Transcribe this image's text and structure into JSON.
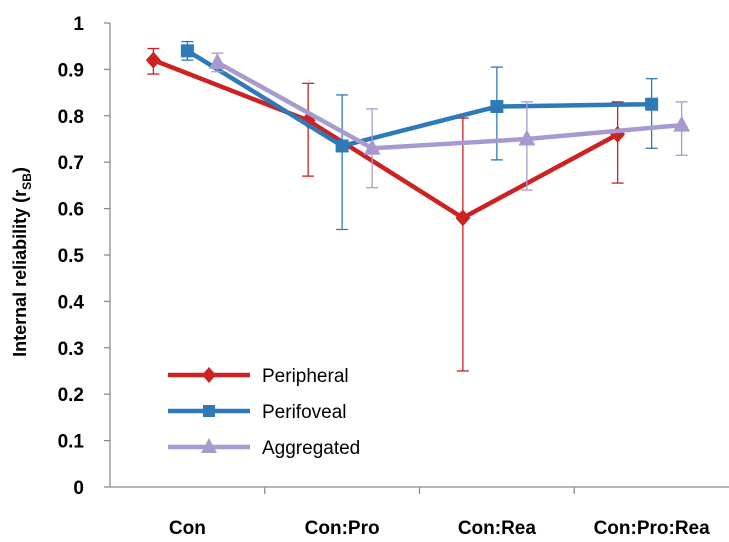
{
  "chart_data": {
    "type": "line",
    "title": "",
    "xlabel": "",
    "ylabel": "Internal reliability (r",
    "ylabel_sub": "SB",
    "ylabel_close": ")",
    "categories": [
      "Con",
      "Con:Pro",
      "Con:Rea",
      "Con:Pro:Rea"
    ],
    "ylim": [
      0,
      1
    ],
    "yticks": [
      "0",
      "0.1",
      "0.2",
      "0.3",
      "0.4",
      "0.5",
      "0.6",
      "0.7",
      "0.8",
      "0.9",
      "1"
    ],
    "grid": false,
    "legend_position": "bottom-left",
    "series": [
      {
        "name": "Peripheral",
        "color": "#cc2222",
        "marker": "diamond",
        "values": [
          0.92,
          0.79,
          0.58,
          0.76
        ],
        "err_low": [
          0.89,
          0.67,
          0.25,
          0.655
        ],
        "err_high": [
          0.945,
          0.87,
          0.795,
          0.83
        ]
      },
      {
        "name": "Perifoveal",
        "color": "#2e79b8",
        "marker": "square",
        "values": [
          0.94,
          0.735,
          0.82,
          0.825
        ],
        "err_low": [
          0.92,
          0.555,
          0.705,
          0.73
        ],
        "err_high": [
          0.96,
          0.845,
          0.905,
          0.88
        ]
      },
      {
        "name": "Aggregated",
        "color": "#a89ad0",
        "marker": "triangle",
        "values": [
          0.915,
          0.73,
          0.75,
          0.78
        ],
        "err_low": [
          0.895,
          0.645,
          0.64,
          0.715
        ],
        "err_high": [
          0.935,
          0.815,
          0.83,
          0.83
        ]
      }
    ]
  }
}
